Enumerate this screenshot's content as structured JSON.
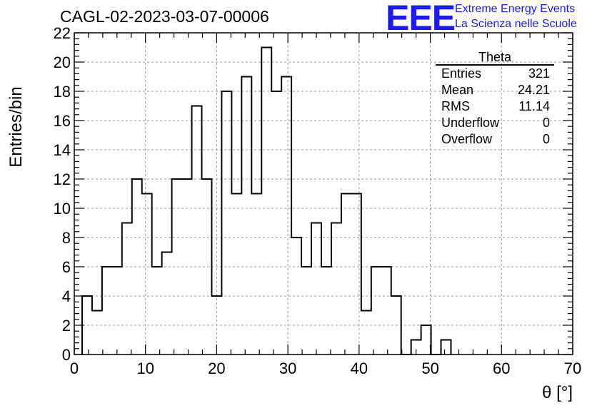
{
  "header": {
    "run_title": "CAGL-02-2023-03-07-00006",
    "logo": "EEE",
    "logo_line1": "Extreme Energy Events",
    "logo_line2": "La Scienza nelle Scuole"
  },
  "stats": {
    "title": "Theta",
    "rows": [
      {
        "label": "Entries",
        "value": "321"
      },
      {
        "label": "Mean",
        "value": "24.21"
      },
      {
        "label": "RMS",
        "value": "11.14"
      },
      {
        "label": "Underflow",
        "value": "0"
      },
      {
        "label": "Overflow",
        "value": "0"
      }
    ]
  },
  "colors": {
    "logo": "#1a1aff",
    "line": "#000000",
    "grid": "#9a9a9a"
  },
  "chart_data": {
    "type": "histogram",
    "xlabel": "θ [°]",
    "ylabel": "Entries/bin",
    "xlim": [
      0,
      70
    ],
    "ylim": [
      0,
      22
    ],
    "x_ticks": [
      0,
      10,
      20,
      30,
      40,
      50,
      60,
      70
    ],
    "y_ticks": [
      0,
      2,
      4,
      6,
      8,
      10,
      12,
      14,
      16,
      18,
      20,
      22
    ],
    "grid": true,
    "bin_edges": [
      1.1,
      2.5,
      3.9,
      5.3,
      6.7,
      8.1,
      9.5,
      10.9,
      12.3,
      13.7,
      15.1,
      16.5,
      17.9,
      19.3,
      20.7,
      22.1,
      23.5,
      24.9,
      26.3,
      27.7,
      29.1,
      30.5,
      31.9,
      33.3,
      34.7,
      36.1,
      37.5,
      38.9,
      40.3,
      41.7,
      43.1,
      44.5,
      45.9,
      47.3,
      48.7,
      50.1,
      51.5,
      52.9
    ],
    "counts": [
      4,
      3,
      6,
      6,
      9,
      12,
      11,
      6,
      7,
      12,
      12,
      17,
      12,
      4,
      18,
      11,
      19,
      11,
      21,
      18,
      19,
      8,
      6,
      9,
      6,
      9,
      11,
      11,
      3,
      6,
      6,
      4,
      0,
      1,
      2,
      0,
      1
    ]
  }
}
